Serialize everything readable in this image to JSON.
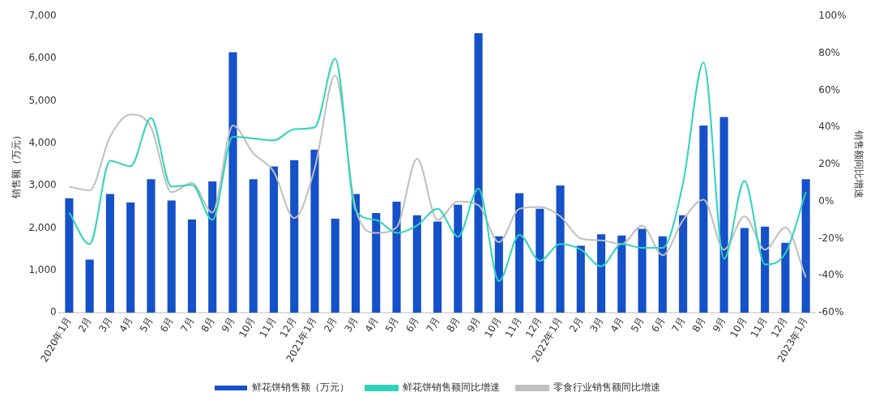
{
  "chart_data": {
    "type": "bar",
    "categories": [
      "2020年1月",
      "2月",
      "3月",
      "4月",
      "5月",
      "6月",
      "7月",
      "8月",
      "9月",
      "10月",
      "11月",
      "12月",
      "2021年1月",
      "2月",
      "3月",
      "4月",
      "5月",
      "6月",
      "7月",
      "8月",
      "9月",
      "10月",
      "11月",
      "12月",
      "2022年1月",
      "2月",
      "3月",
      "4月",
      "5月",
      "6月",
      "7月",
      "8月",
      "9月",
      "10月",
      "11月",
      "12月",
      "2023年1月"
    ],
    "ylabel": "销售额（万元）",
    "y2label": "销售额同比增速",
    "ylim": [
      0,
      7000
    ],
    "yticks": [
      0,
      {
        "value": 1000,
        "label": "1,000"
      },
      {
        "value": 2000,
        "label": "2,000"
      },
      {
        "value": 3000,
        "label": "3,000"
      },
      {
        "value": 4000,
        "label": "4,000"
      },
      {
        "value": 5000,
        "label": "5,000"
      },
      {
        "value": 6000,
        "label": "6,000"
      },
      {
        "value": 7000,
        "label": "7,000"
      }
    ],
    "y2lim": [
      -60,
      100
    ],
    "y2ticks": [
      {
        "value": -60,
        "label": "-60%"
      },
      {
        "value": -40,
        "label": "-40%"
      },
      {
        "value": -20,
        "label": "-20%"
      },
      {
        "value": 0,
        "label": "0%"
      },
      {
        "value": 20,
        "label": "20%"
      },
      {
        "value": 40,
        "label": "40%"
      },
      {
        "value": 60,
        "label": "60%"
      },
      {
        "value": 80,
        "label": "80%"
      },
      {
        "value": 100,
        "label": "100%"
      }
    ],
    "grid": false,
    "legend": "bottom",
    "marker": "none",
    "series": [
      {
        "name": "鲜花饼销售额（万元）",
        "color": "#1551c8",
        "values": [
          2700,
          1250,
          2800,
          2600,
          3150,
          2650,
          2200,
          3100,
          6150,
          3150,
          3450,
          3600,
          3850,
          2220,
          2800,
          2350,
          2620,
          2300,
          2150,
          2550,
          6600,
          1800,
          2820,
          2450,
          3000,
          1580,
          1850,
          1820,
          1980,
          1800,
          2300,
          4420,
          4620,
          2000,
          2030,
          1650,
          3150
        ]
      },
      {
        "name": "鲜花饼销售额同比增速",
        "type": "line",
        "axis": "y2",
        "color": "#2ed3bd",
        "values": [
          -6,
          -23,
          22,
          19,
          45,
          8,
          9,
          -10,
          35,
          34,
          33,
          39,
          40,
          77,
          -5,
          -10,
          -17,
          -13,
          -4,
          -19,
          7,
          -43,
          -18,
          -32,
          -23,
          -26,
          -35,
          -23,
          -25,
          -25,
          10,
          75,
          -31,
          11,
          -34,
          -28,
          5
        ]
      },
      {
        "name": "零食行业销售额同比增速",
        "type": "line",
        "axis": "y2",
        "color": "#bfbfbf",
        "values": [
          8,
          6,
          35,
          47,
          40,
          5,
          10,
          -6,
          41,
          26,
          16,
          -9,
          18,
          68,
          -4,
          -17,
          -14,
          23,
          -10,
          0,
          -2,
          -22,
          -4,
          -3,
          -8,
          -20,
          -21,
          -23,
          -13,
          -29,
          -10,
          1,
          -26,
          -8,
          -26,
          -14,
          -41
        ]
      }
    ]
  }
}
